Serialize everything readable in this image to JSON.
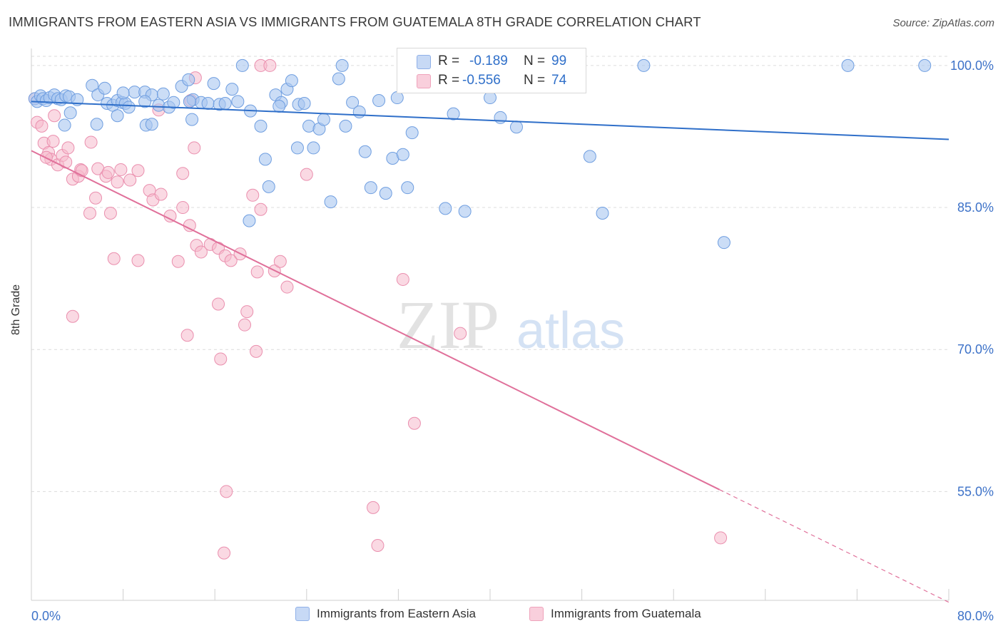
{
  "title": "IMMIGRANTS FROM EASTERN ASIA VS IMMIGRANTS FROM GUATEMALA 8TH GRADE CORRELATION CHART",
  "source": "Source: ZipAtlas.com",
  "watermark": {
    "part1": "ZIP",
    "part2": "atlas"
  },
  "stats": {
    "blue": {
      "r_label": "R =",
      "r_value": "-0.189",
      "n_label": "N =",
      "n_value": "99"
    },
    "pink": {
      "r_label": "R =",
      "r_value": "-0.556",
      "n_label": "N =",
      "n_value": "74"
    }
  },
  "legend": {
    "blue_label": "Immigrants from Eastern Asia",
    "pink_label": "Immigrants from Guatemala"
  },
  "colors": {
    "blue_fill": "#a9c6f0",
    "blue_stroke": "#6f9ee0",
    "blue_line": "#2f6fc9",
    "pink_fill": "#f6b9cc",
    "pink_stroke": "#ea8fae",
    "pink_line": "#e0709a",
    "axis_text": "#3d72c8",
    "grid": "#dcdcdc"
  },
  "chart_data": {
    "type": "scatter",
    "title": "IMMIGRANTS FROM EASTERN ASIA VS IMMIGRANTS FROM GUATEMALA 8TH GRADE CORRELATION CHART",
    "xlabel": "",
    "ylabel": "8th Grade",
    "xlim": [
      0,
      80
    ],
    "ylim": [
      43.5,
      101.5
    ],
    "x_tick_labels": [
      "0.0%",
      "80.0%"
    ],
    "y_ticks": [
      100,
      85,
      70,
      55
    ],
    "y_tick_labels": [
      "100.0%",
      "85.0%",
      "70.0%",
      "55.0%"
    ],
    "grid": "horizontal dashed",
    "legend_position": "bottom",
    "series": [
      {
        "name": "Immigrants from Eastern Asia",
        "color": "#a9c6f0",
        "trend": {
          "x": [
            0,
            80
          ],
          "y": [
            96.2,
            92.2
          ]
        },
        "points": [
          [
            0.3,
            96.5
          ],
          [
            0.5,
            96.2
          ],
          [
            0.8,
            96.8
          ],
          [
            1.0,
            96.5
          ],
          [
            1.3,
            96.3
          ],
          [
            1.6,
            96.6
          ],
          [
            2.0,
            96.9
          ],
          [
            2.3,
            96.5
          ],
          [
            2.6,
            96.4
          ],
          [
            3.0,
            96.8
          ],
          [
            3.3,
            96.7
          ],
          [
            4.0,
            96.4
          ],
          [
            3.4,
            95.0
          ],
          [
            2.9,
            93.7
          ],
          [
            5.3,
            97.9
          ],
          [
            5.8,
            96.9
          ],
          [
            6.4,
            97.6
          ],
          [
            6.6,
            96.0
          ],
          [
            7.1,
            95.8
          ],
          [
            7.5,
            96.3
          ],
          [
            7.9,
            96.1
          ],
          [
            8.2,
            96.0
          ],
          [
            8.5,
            95.6
          ],
          [
            9.0,
            97.2
          ],
          [
            9.9,
            97.2
          ],
          [
            10.5,
            96.9
          ],
          [
            11.1,
            95.8
          ],
          [
            11.5,
            97.0
          ],
          [
            12.0,
            95.6
          ],
          [
            12.4,
            96.1
          ],
          [
            13.1,
            97.8
          ],
          [
            13.7,
            98.5
          ],
          [
            14.1,
            96.4
          ],
          [
            14.8,
            96.1
          ],
          [
            15.4,
            96.0
          ],
          [
            15.9,
            98.1
          ],
          [
            16.4,
            95.9
          ],
          [
            17.5,
            97.5
          ],
          [
            18.0,
            96.2
          ],
          [
            19.1,
            95.2
          ],
          [
            20.0,
            93.6
          ],
          [
            20.4,
            90.1
          ],
          [
            20.7,
            87.2
          ],
          [
            21.3,
            96.9
          ],
          [
            21.8,
            96.1
          ],
          [
            22.3,
            97.5
          ],
          [
            22.7,
            98.4
          ],
          [
            23.3,
            95.9
          ],
          [
            23.8,
            96.0
          ],
          [
            24.2,
            93.6
          ],
          [
            24.6,
            91.3
          ],
          [
            25.1,
            93.3
          ],
          [
            25.5,
            94.3
          ],
          [
            26.1,
            85.6
          ],
          [
            26.8,
            98.6
          ],
          [
            27.4,
            93.6
          ],
          [
            28.0,
            96.1
          ],
          [
            28.6,
            95.1
          ],
          [
            29.1,
            90.9
          ],
          [
            29.6,
            87.1
          ],
          [
            30.3,
            96.3
          ],
          [
            30.9,
            86.5
          ],
          [
            31.5,
            90.2
          ],
          [
            31.9,
            96.6
          ],
          [
            32.4,
            90.6
          ],
          [
            32.8,
            87.1
          ],
          [
            33.2,
            92.9
          ],
          [
            5.7,
            93.8
          ],
          [
            7.5,
            94.7
          ],
          [
            10.0,
            93.7
          ],
          [
            14.0,
            94.3
          ],
          [
            19.0,
            83.6
          ],
          [
            23.2,
            91.3
          ],
          [
            36.8,
            94.9
          ],
          [
            40.0,
            96.6
          ],
          [
            40.9,
            94.5
          ],
          [
            42.3,
            93.5
          ],
          [
            36.1,
            84.9
          ],
          [
            37.8,
            84.6
          ],
          [
            48.7,
            90.4
          ],
          [
            49.8,
            84.4
          ],
          [
            60.4,
            81.3
          ],
          [
            36.5,
            100.0
          ],
          [
            38.7,
            100.0
          ],
          [
            18.4,
            100.0
          ],
          [
            27.1,
            100.0
          ],
          [
            53.4,
            100.0
          ],
          [
            71.2,
            100.0
          ],
          [
            77.9,
            100.0
          ],
          [
            41.0,
            100.0
          ],
          [
            42.9,
            100.0
          ],
          [
            10.5,
            93.8
          ],
          [
            13.8,
            96.2
          ],
          [
            16.9,
            96.0
          ],
          [
            21.6,
            95.7
          ],
          [
            9.9,
            96.2
          ],
          [
            8.0,
            97.1
          ],
          [
            34.5,
            100.0
          ]
        ]
      },
      {
        "name": "Immigrants from Guatemala",
        "color": "#f6b9cc",
        "trend": {
          "x": [
            0,
            60
          ],
          "y": [
            91.0,
            55.2
          ]
        },
        "trend_dashed": {
          "x": [
            60,
            80
          ],
          "y": [
            55.2,
            43.3
          ]
        },
        "points": [
          [
            0.3,
            96.5
          ],
          [
            0.5,
            94.0
          ],
          [
            1.1,
            91.8
          ],
          [
            1.5,
            90.8
          ],
          [
            1.7,
            90.1
          ],
          [
            1.9,
            92.0
          ],
          [
            2.3,
            89.5
          ],
          [
            2.7,
            90.5
          ],
          [
            3.0,
            89.8
          ],
          [
            3.2,
            91.3
          ],
          [
            3.6,
            88.0
          ],
          [
            4.1,
            88.3
          ],
          [
            4.3,
            89.0
          ],
          [
            4.4,
            88.9
          ],
          [
            5.2,
            91.9
          ],
          [
            5.8,
            89.1
          ],
          [
            6.5,
            88.3
          ],
          [
            6.7,
            88.7
          ],
          [
            7.5,
            87.7
          ],
          [
            7.8,
            89.0
          ],
          [
            8.6,
            87.9
          ],
          [
            9.3,
            88.9
          ],
          [
            10.3,
            86.8
          ],
          [
            10.6,
            85.8
          ],
          [
            11.3,
            86.4
          ],
          [
            12.1,
            84.1
          ],
          [
            13.2,
            85.0
          ],
          [
            13.8,
            83.1
          ],
          [
            14.2,
            91.3
          ],
          [
            14.4,
            81.0
          ],
          [
            14.8,
            80.3
          ],
          [
            15.6,
            81.1
          ],
          [
            16.3,
            80.7
          ],
          [
            16.9,
            79.9
          ],
          [
            17.4,
            79.4
          ],
          [
            18.2,
            80.1
          ],
          [
            19.3,
            86.3
          ],
          [
            19.7,
            78.2
          ],
          [
            20.0,
            84.8
          ],
          [
            21.2,
            78.3
          ],
          [
            21.7,
            79.3
          ],
          [
            22.3,
            76.6
          ],
          [
            24.0,
            88.5
          ],
          [
            0.9,
            93.6
          ],
          [
            1.3,
            90.3
          ],
          [
            2.0,
            94.7
          ],
          [
            7.2,
            79.6
          ],
          [
            9.3,
            79.4
          ],
          [
            12.8,
            79.3
          ],
          [
            5.1,
            84.4
          ],
          [
            6.9,
            84.4
          ],
          [
            3.6,
            73.5
          ],
          [
            16.3,
            74.8
          ],
          [
            13.6,
            71.5
          ],
          [
            18.6,
            72.6
          ],
          [
            18.8,
            74.0
          ],
          [
            19.6,
            69.8
          ],
          [
            16.5,
            69.0
          ],
          [
            32.4,
            77.4
          ],
          [
            37.4,
            71.7
          ],
          [
            33.4,
            62.2
          ],
          [
            17.0,
            55.0
          ],
          [
            29.8,
            53.3
          ],
          [
            30.2,
            49.3
          ],
          [
            16.8,
            48.5
          ],
          [
            60.1,
            50.1
          ],
          [
            14.3,
            98.7
          ],
          [
            13.9,
            96.3
          ],
          [
            11.1,
            95.3
          ],
          [
            20.0,
            100.0
          ],
          [
            20.8,
            100.0
          ],
          [
            38.4,
            100.0
          ],
          [
            13.2,
            88.6
          ],
          [
            5.6,
            86.0
          ]
        ]
      }
    ]
  }
}
